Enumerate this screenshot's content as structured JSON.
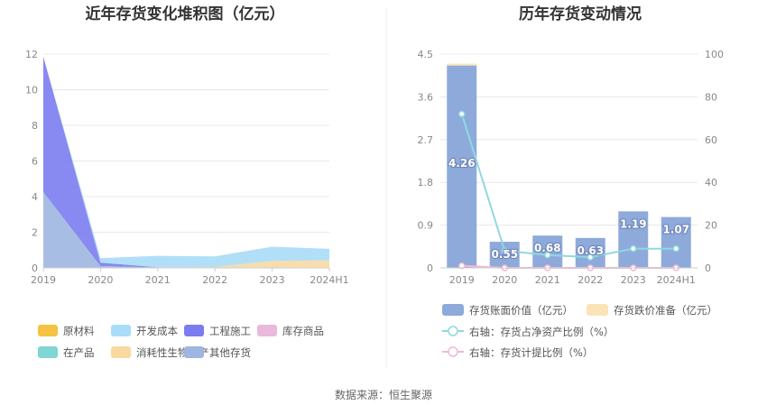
{
  "footer": {
    "source": "数据来源：恒生聚源"
  },
  "chart_data": [
    {
      "type": "area",
      "title": "近年存货变化堆积图（亿元）",
      "categories": [
        "2019",
        "2020",
        "2021",
        "2022",
        "2023",
        "2024H1"
      ],
      "ylim": [
        0,
        12
      ],
      "yticks": [
        "0",
        "2",
        "4",
        "6",
        "8",
        "10",
        "12"
      ],
      "stacked": true,
      "grid": true,
      "legend_position": "bottom",
      "series": [
        {
          "name": "原材料",
          "color": "#f5c242",
          "values": [
            0,
            0,
            0,
            0,
            0,
            0
          ]
        },
        {
          "name": "开发成本",
          "color": "#a9dcf7",
          "values": [
            0,
            0.25,
            0.65,
            0.6,
            0.8,
            0.65
          ]
        },
        {
          "name": "工程施工",
          "color": "#7b7cf0",
          "values": [
            7.6,
            0.2,
            0,
            0,
            0,
            0
          ]
        },
        {
          "name": "库存商品",
          "color": "#e9b8db",
          "values": [
            0,
            0,
            0,
            0,
            0,
            0
          ]
        },
        {
          "name": "在产品",
          "color": "#7fd6d3",
          "values": [
            0,
            0,
            0,
            0,
            0,
            0
          ]
        },
        {
          "name": "消耗性生物资产",
          "color": "#fad9a1",
          "values": [
            0,
            0,
            0,
            0.05,
            0.35,
            0.4
          ]
        },
        {
          "name": "其他存货",
          "color": "#9fb6e0",
          "values": [
            4.26,
            0.1,
            0.03,
            0,
            0.04,
            0.02
          ]
        }
      ]
    },
    {
      "type": "bar",
      "title": "历年存货变动情况",
      "categories": [
        "2019",
        "2020",
        "2021",
        "2022",
        "2023",
        "2024H1"
      ],
      "ylim": [
        0,
        4.5
      ],
      "yticks": [
        "0",
        "0.9",
        "1.8",
        "2.7",
        "3.6",
        "4.5"
      ],
      "y2lim": [
        0,
        100
      ],
      "y2ticks": [
        "0",
        "20",
        "40",
        "60",
        "80",
        "100"
      ],
      "grid": true,
      "legend_position": "bottom",
      "series": [
        {
          "name": "存货账面价值（亿元）",
          "kind": "bar",
          "axis": "left",
          "color": "#8eaadb",
          "values": [
            4.26,
            0.55,
            0.68,
            0.63,
            1.19,
            1.07
          ],
          "labels": [
            "4.26",
            "0.55",
            "0.68",
            "0.63",
            "1.19",
            "1.07"
          ]
        },
        {
          "name": "存货跌价准备（亿元）",
          "kind": "bar",
          "axis": "left",
          "color": "#fbe3b8",
          "values": [
            0.04,
            0,
            0,
            0,
            0,
            0
          ]
        },
        {
          "name": "右轴：存货占净资产比例（%）",
          "kind": "line",
          "axis": "right",
          "color": "#8fd8df",
          "values": [
            72,
            8,
            6,
            5,
            9,
            9
          ]
        },
        {
          "name": "右轴：存货计提比例（%）",
          "kind": "line",
          "axis": "right",
          "color": "#f0b8d6",
          "values": [
            1,
            0,
            0,
            0,
            0,
            0
          ]
        }
      ]
    }
  ]
}
